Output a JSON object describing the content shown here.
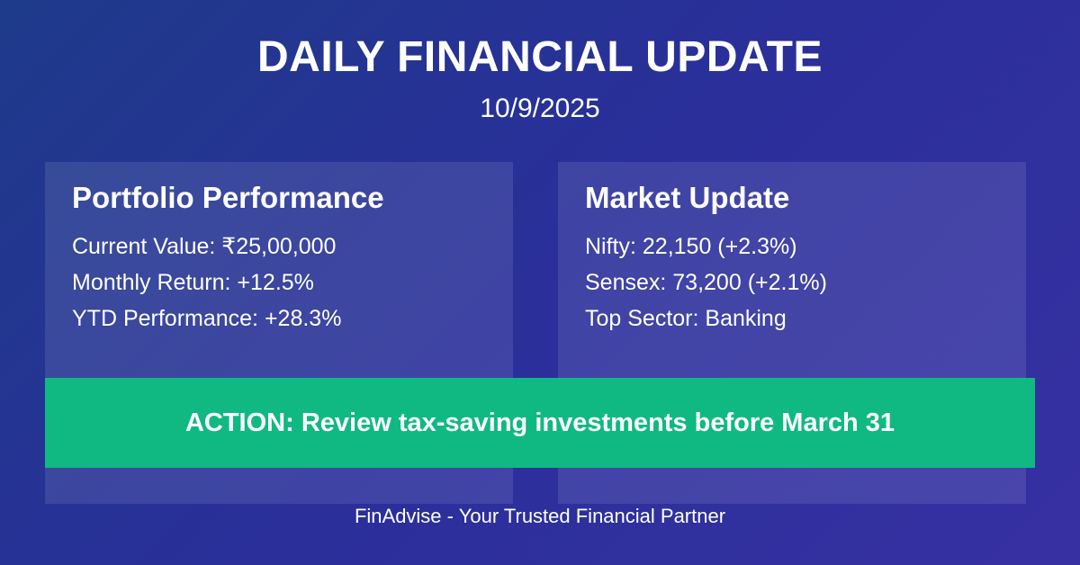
{
  "header": {
    "title": "DAILY FINANCIAL UPDATE",
    "date": "10/9/2025"
  },
  "portfolio": {
    "title": "Portfolio Performance",
    "lines": [
      "Current Value: ₹25,00,000",
      "Monthly Return: +12.5%",
      "YTD Performance: +28.3%"
    ]
  },
  "market": {
    "title": "Market Update",
    "lines": [
      "Nifty: 22,150 (+2.3%)",
      "Sensex: 73,200 (+2.1%)",
      "Top Sector: Banking"
    ]
  },
  "action": {
    "text": "ACTION: Review tax-saving investments before March 31"
  },
  "footer": {
    "text": "FinAdvise - Your Trusted Financial Partner"
  },
  "colors": {
    "background_start": "#1e3a8a",
    "background_end": "#3730a3",
    "action_banner": "#10b981",
    "text": "#ffffff"
  }
}
